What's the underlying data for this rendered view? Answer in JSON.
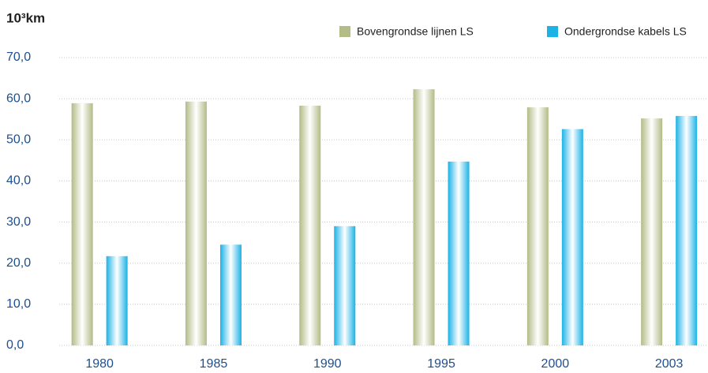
{
  "chart_data": {
    "type": "bar",
    "y_label": "10³km",
    "categories": [
      "1980",
      "1985",
      "1990",
      "1995",
      "2000",
      "2003"
    ],
    "series": [
      {
        "name": "Bovengrondse lijnen LS",
        "color": "#b3bb86",
        "values": [
          58.9,
          59.3,
          58.3,
          62.3,
          57.9,
          55.2
        ]
      },
      {
        "name": "Ondergrondse kabels LS",
        "color": "#1cb2e6",
        "values": [
          21.7,
          24.5,
          29.0,
          44.7,
          52.6,
          55.8
        ]
      }
    ],
    "ylim": [
      0,
      70
    ],
    "yticks": [
      {
        "value": 0,
        "label": "0,0"
      },
      {
        "value": 10,
        "label": "10,0"
      },
      {
        "value": 20,
        "label": "20,0"
      },
      {
        "value": 30,
        "label": "30,0"
      },
      {
        "value": 40,
        "label": "40,0"
      },
      {
        "value": 50,
        "label": "50,0"
      },
      {
        "value": 60,
        "label": "60,0"
      },
      {
        "value": 70,
        "label": "70,0"
      }
    ],
    "grid": true
  }
}
